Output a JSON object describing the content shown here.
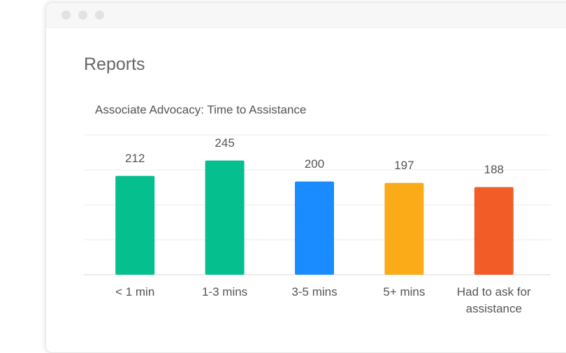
{
  "header": {
    "title": "Reports"
  },
  "chart_data": {
    "type": "bar",
    "title": "Associate Advocacy: Time to Assistance",
    "categories": [
      "< 1 min",
      "1-3 mins",
      "3-5 mins",
      "5+ mins",
      "Had to ask for assistance"
    ],
    "values": [
      212,
      245,
      200,
      197,
      188
    ],
    "colors": [
      "#06bf8f",
      "#06bf8f",
      "#1a8cff",
      "#fbab18",
      "#f25c27"
    ],
    "ylim": [
      0,
      300
    ],
    "yticks": [
      0,
      75,
      150,
      225,
      300
    ],
    "grid": true
  }
}
